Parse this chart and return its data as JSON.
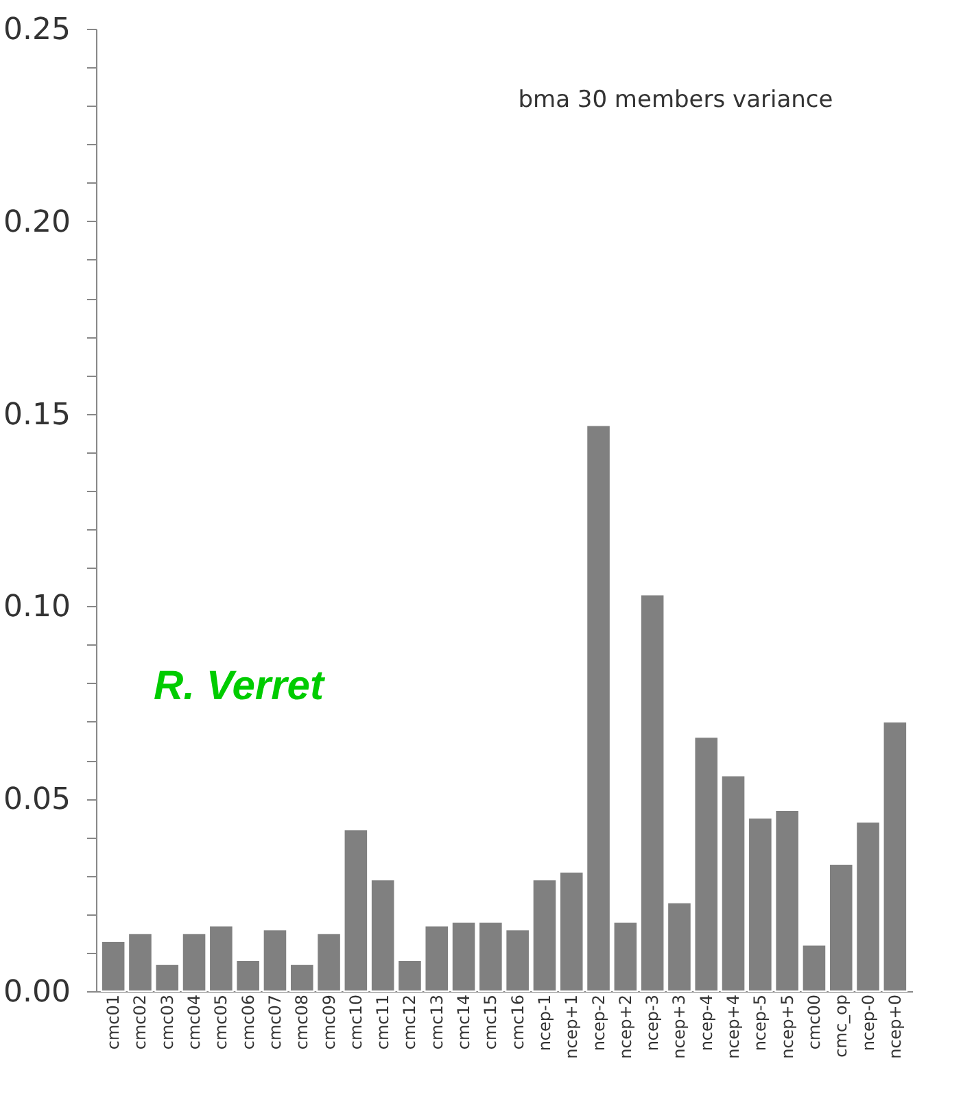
{
  "chart_data": {
    "type": "bar",
    "title": "bma 30 members variance",
    "categories": [
      "cmc01",
      "cmc02",
      "cmc03",
      "cmc04",
      "cmc05",
      "cmc06",
      "cmc07",
      "cmc08",
      "cmc09",
      "cmc10",
      "cmc11",
      "cmc12",
      "cmc13",
      "cmc14",
      "cmc15",
      "cmc16",
      "ncep-1",
      "ncep+1",
      "ncep-2",
      "ncep+2",
      "ncep-3",
      "ncep+3",
      "ncep-4",
      "ncep+4",
      "ncep-5",
      "ncep+5",
      "cmc00",
      "cmc_op",
      "ncep-0",
      "ncep+0"
    ],
    "values": [
      0.013,
      0.015,
      0.007,
      0.015,
      0.017,
      0.008,
      0.016,
      0.007,
      0.015,
      0.042,
      0.029,
      0.008,
      0.017,
      0.018,
      0.018,
      0.016,
      0.029,
      0.031,
      0.147,
      0.018,
      0.103,
      0.023,
      0.066,
      0.056,
      0.045,
      0.047,
      0.012,
      0.033,
      0.044,
      0.07
    ],
    "color": "#808080",
    "ylim": [
      0,
      0.25
    ],
    "yticks": [
      {
        "value": 0,
        "label": "0.00"
      },
      {
        "value": 0.05,
        "label": "0.05"
      },
      {
        "value": 0.1,
        "label": "0.10"
      },
      {
        "value": 0.15,
        "label": "0.15"
      },
      {
        "value": 0.2,
        "label": "0.20"
      },
      {
        "value": 0.25,
        "label": "0.25"
      },
      {
        "value": 0.01,
        "label": null
      },
      {
        "value": 0.02,
        "label": null
      },
      {
        "value": 0.03,
        "label": null
      },
      {
        "value": 0.04,
        "label": null
      },
      {
        "value": 0.06,
        "label": null
      },
      {
        "value": 0.07,
        "label": null
      },
      {
        "value": 0.08,
        "label": null
      },
      {
        "value": 0.09,
        "label": null
      },
      {
        "value": 0.11,
        "label": null
      },
      {
        "value": 0.12,
        "label": null
      },
      {
        "value": 0.13,
        "label": null
      },
      {
        "value": 0.14,
        "label": null
      },
      {
        "value": 0.16,
        "label": null
      },
      {
        "value": 0.17,
        "label": null
      },
      {
        "value": 0.18,
        "label": null
      },
      {
        "value": 0.19,
        "label": null
      },
      {
        "value": 0.21,
        "label": null
      },
      {
        "value": 0.22,
        "label": null
      },
      {
        "value": 0.23,
        "label": null
      },
      {
        "value": 0.24,
        "label": null
      }
    ],
    "grid": false,
    "annotations": [
      "R. Verret"
    ]
  }
}
